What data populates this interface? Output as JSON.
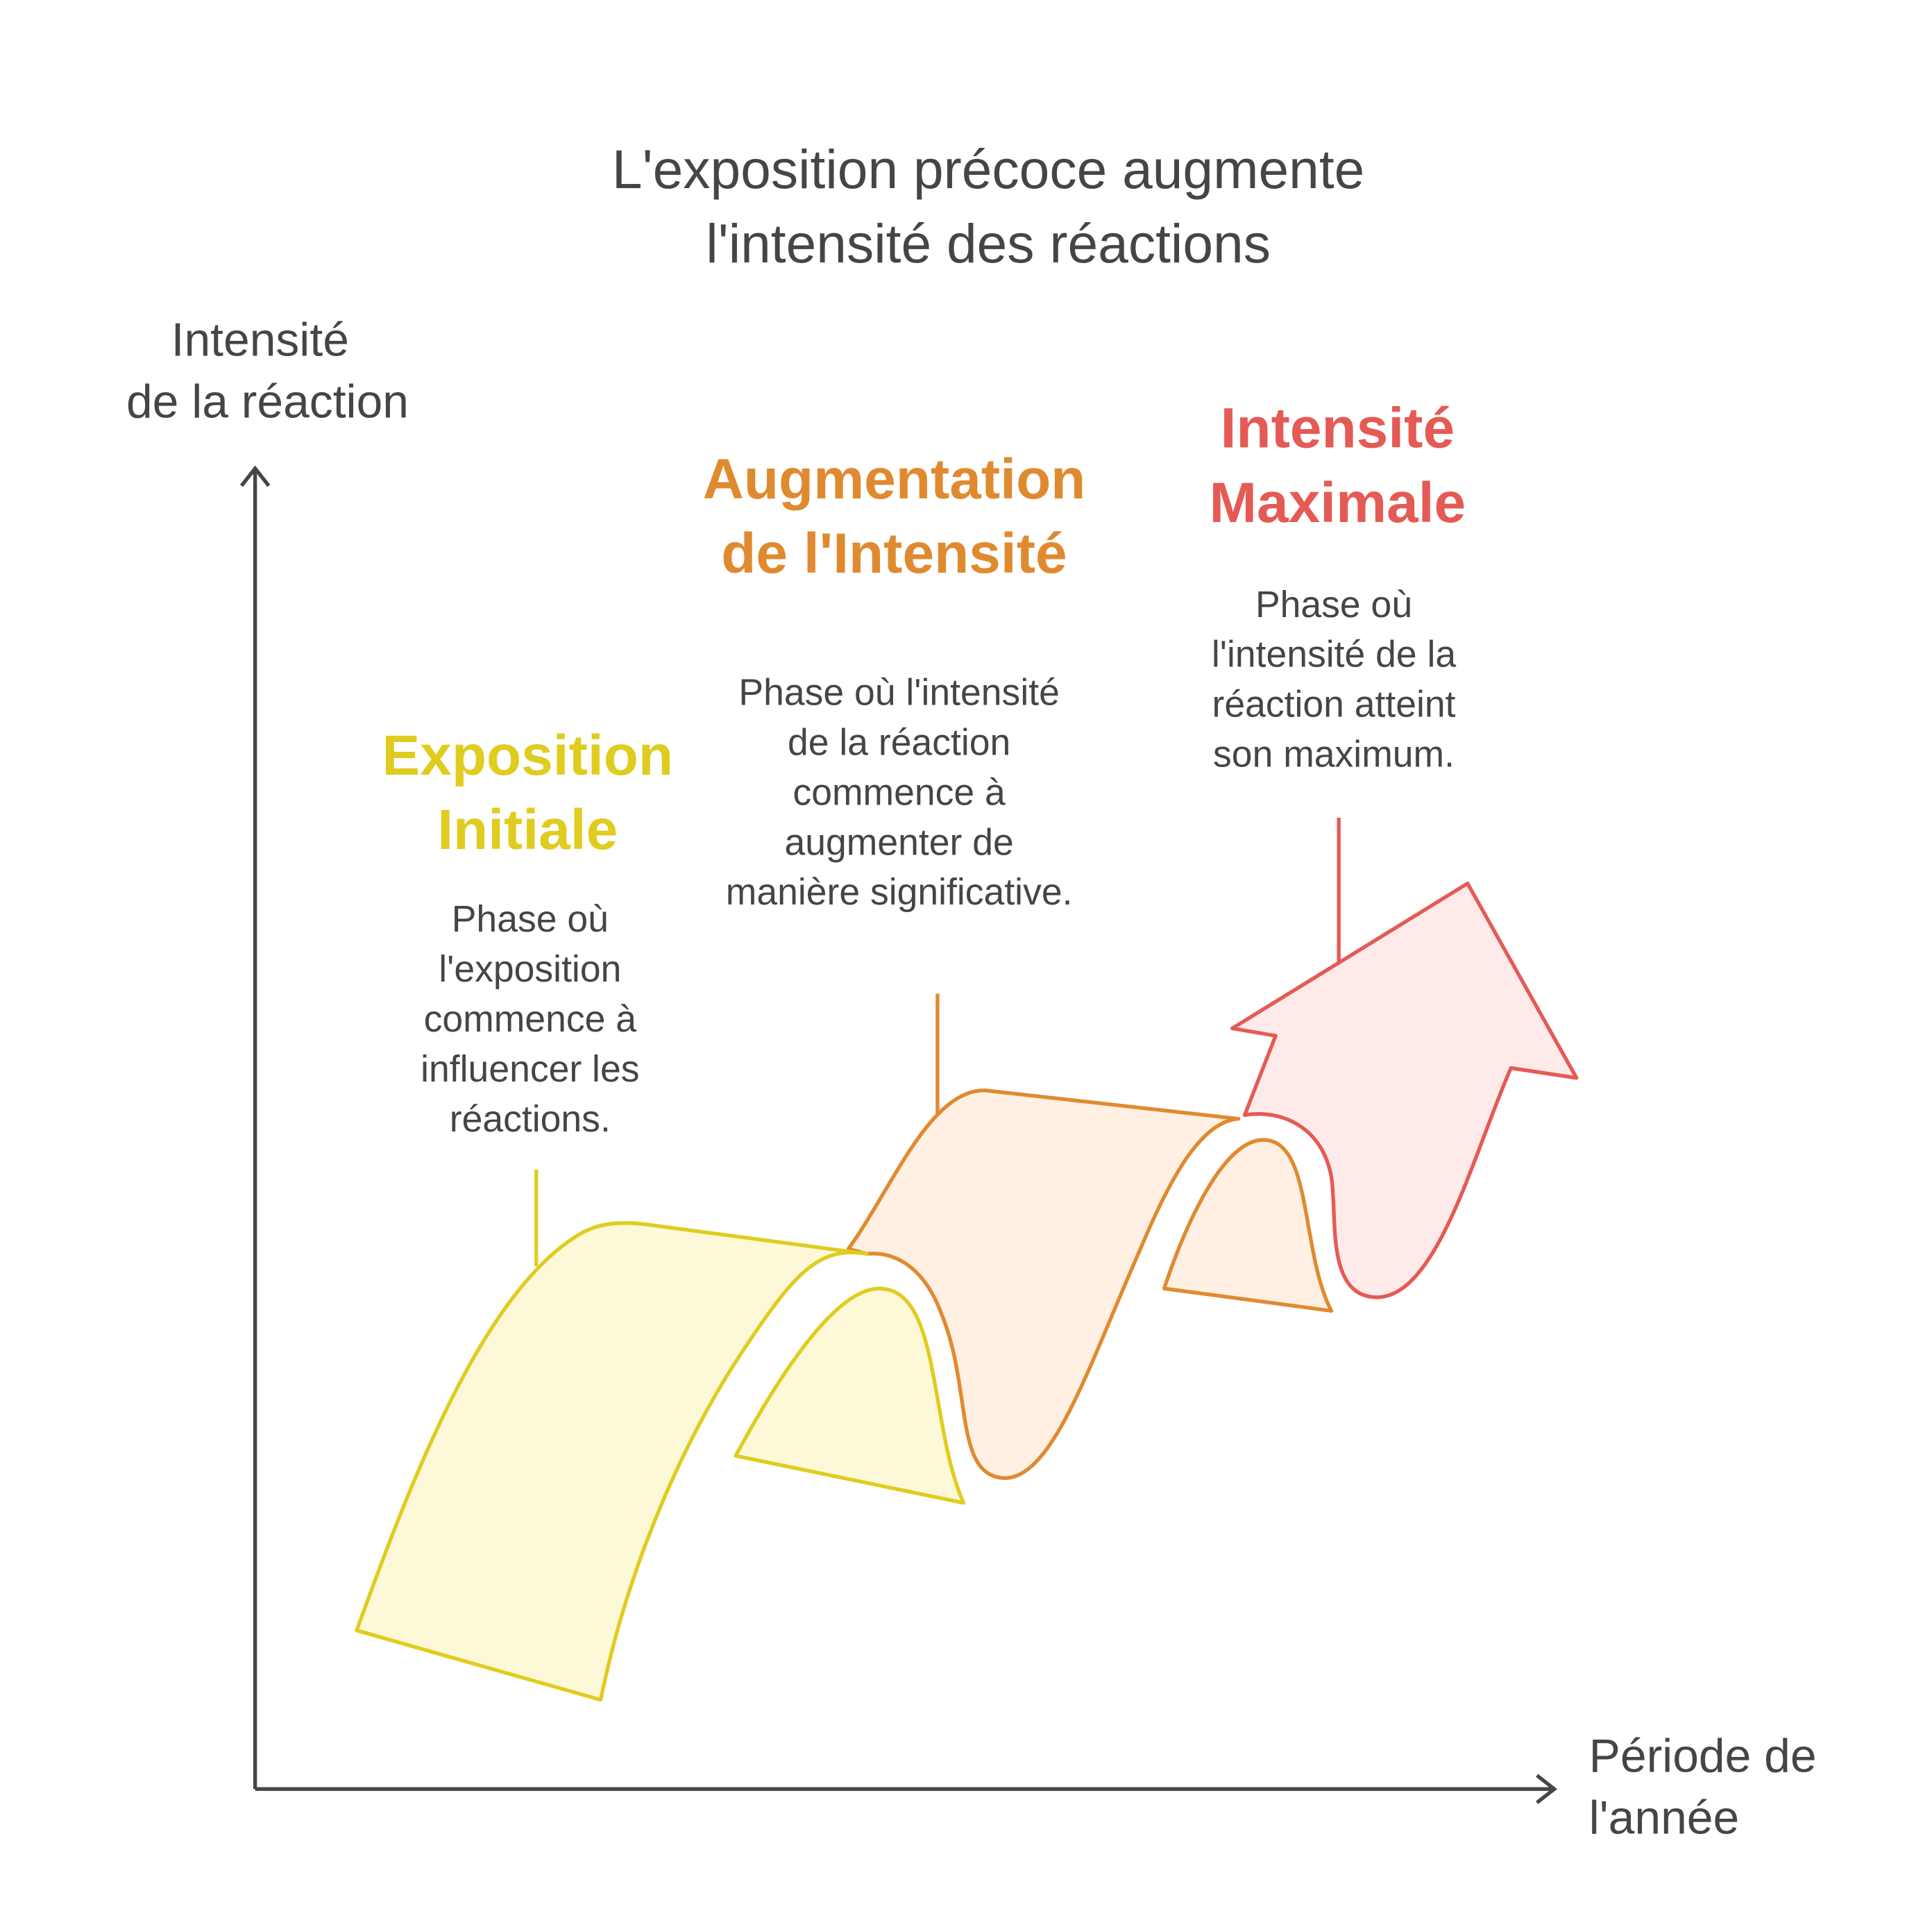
{
  "title": {
    "lines": [
      "L'exposition précoce augmente",
      "l'intensité des réactions"
    ]
  },
  "y_axis": {
    "lines": [
      "Intensité",
      "de la réaction"
    ]
  },
  "x_axis": {
    "lines": [
      "Période de",
      "l'année"
    ]
  },
  "phases": [
    {
      "title": [
        "Exposition",
        "Initiale"
      ],
      "description": [
        "Phase où",
        "l'exposition",
        "commence à",
        "influencer les",
        "réactions."
      ]
    },
    {
      "title": [
        "Augmentation",
        "de l'Intensité"
      ],
      "description": [
        "Phase où l'intensité",
        "de la réaction",
        "commence à",
        "augmenter de",
        "manière significative."
      ]
    },
    {
      "title": [
        "Intensité",
        "Maximale"
      ],
      "description": [
        "Phase où",
        "l'intensité de la",
        "réaction atteint",
        "son maximum."
      ]
    }
  ]
}
